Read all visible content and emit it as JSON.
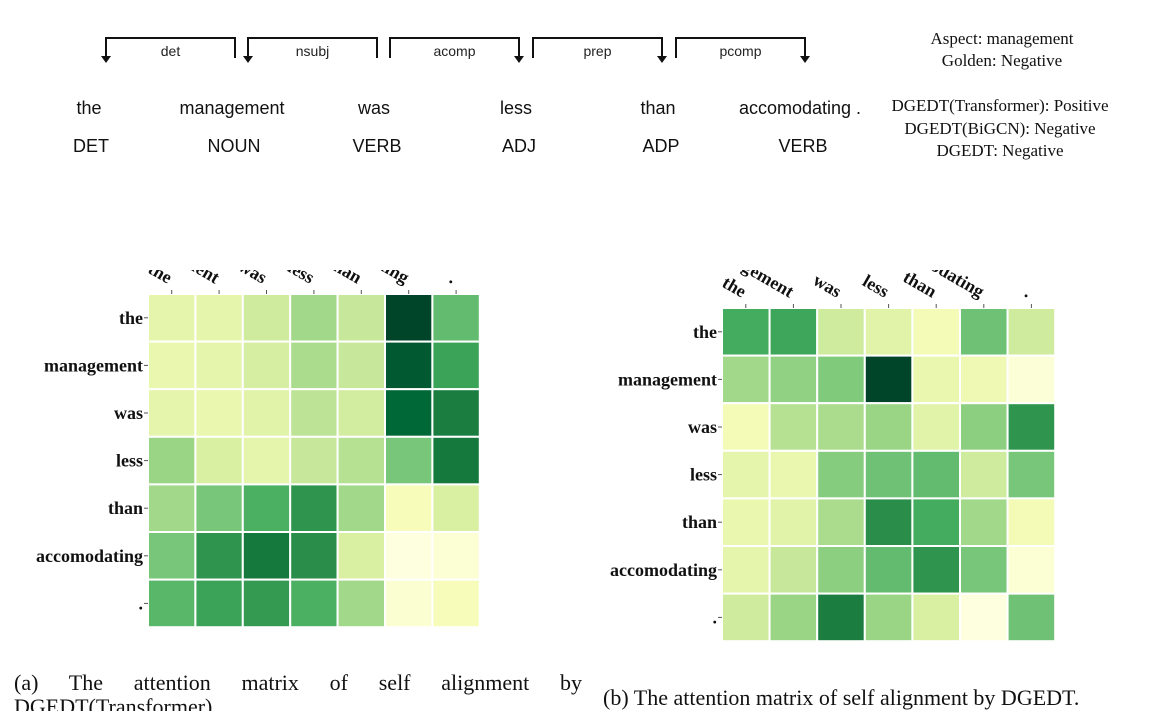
{
  "sentence": {
    "words": [
      "the",
      "management",
      "was",
      "less",
      "than",
      "accomodating ."
    ],
    "pos_tags": [
      "DET",
      "NOUN",
      "VERB",
      "ADJ",
      "ADP",
      "VERB"
    ],
    "relations": [
      "det",
      "nsubj",
      "acomp",
      "prep",
      "pcomp"
    ]
  },
  "info": {
    "aspect": "Aspect: management",
    "golden": "Golden: Negative",
    "pred_transformer": "DGEDT(Transformer): Positive",
    "pred_bigcn": "DGEDT(BiGCN): Negative",
    "pred_dgedt": "DGEDT: Negative"
  },
  "colors": {
    "scale": [
      "#ffffe5",
      "#f7fcb9",
      "#d9f0a3",
      "#addd8e",
      "#78c679",
      "#41ab5d",
      "#238443",
      "#006837",
      "#004529"
    ]
  },
  "chart_data": [
    {
      "type": "heatmap",
      "labels": [
        "the",
        "management",
        "was",
        "less",
        "than",
        "accomodating",
        "."
      ],
      "values": [
        [
          0.2,
          0.2,
          0.28,
          0.4,
          0.3,
          1.0,
          0.55
        ],
        [
          0.18,
          0.2,
          0.26,
          0.38,
          0.3,
          0.93,
          0.65
        ],
        [
          0.2,
          0.18,
          0.22,
          0.33,
          0.27,
          0.88,
          0.78
        ],
        [
          0.42,
          0.25,
          0.2,
          0.3,
          0.35,
          0.5,
          0.8
        ],
        [
          0.4,
          0.5,
          0.6,
          0.7,
          0.4,
          0.12,
          0.25
        ],
        [
          0.5,
          0.7,
          0.8,
          0.72,
          0.25,
          0.02,
          0.05
        ],
        [
          0.57,
          0.65,
          0.68,
          0.6,
          0.4,
          0.06,
          0.12
        ]
      ],
      "caption": "(a) The attention matrix of self alignment by DGEDT(Transformer)."
    },
    {
      "type": "heatmap",
      "labels": [
        "the",
        "management",
        "was",
        "less",
        "than",
        "accomodating",
        "."
      ],
      "values": [
        [
          0.62,
          0.64,
          0.28,
          0.22,
          0.14,
          0.52,
          0.28
        ],
        [
          0.4,
          0.44,
          0.48,
          1.0,
          0.18,
          0.16,
          0.04
        ],
        [
          0.14,
          0.35,
          0.38,
          0.42,
          0.22,
          0.45,
          0.7
        ],
        [
          0.2,
          0.18,
          0.47,
          0.52,
          0.55,
          0.28,
          0.5
        ],
        [
          0.18,
          0.22,
          0.38,
          0.72,
          0.62,
          0.4,
          0.14
        ],
        [
          0.2,
          0.3,
          0.45,
          0.55,
          0.7,
          0.5,
          0.05
        ],
        [
          0.28,
          0.42,
          0.78,
          0.42,
          0.25,
          0.02,
          0.52
        ]
      ],
      "caption": "(b) The attention matrix of self alignment by DGEDT."
    }
  ]
}
